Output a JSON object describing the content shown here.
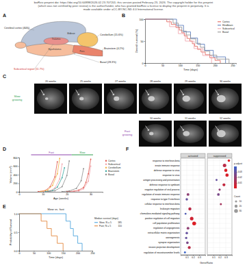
{
  "header": [
    "bioRxiv preprint doi: https://doi.org/10.64898/2026.02.23.707201; this version posted February 23, 2026. The copyright holder for this preprint",
    "(which was not certified by peer review) is the author/funder, who has granted bioRxiv a license to display the preprint in perpetuity. It is",
    "made available under aCC-BY-NC-ND 4.0 International license."
  ],
  "panel_a": {
    "label": "A",
    "regions": [
      {
        "label": "Cerebral cortex (40%)",
        "color": "#b9c5d8"
      },
      {
        "label": "Cerebellum (15.6%)",
        "color": "#f4c46b"
      },
      {
        "label": "Brainstem (4.2%)",
        "color": "#e9836b"
      },
      {
        "label": "Basal (28.3%)",
        "color": "#f6bd9c"
      },
      {
        "label": "Subcortical region (11.7%)",
        "color": "#e8908c"
      }
    ],
    "structures": [
      "Thalamus",
      "Midbrain",
      "Hypothalamus",
      "Pons"
    ]
  },
  "panel_c": {
    "label": "C",
    "slow": {
      "label": "Slow growing",
      "color": "#2e9e4f",
      "timepoints": [
        "20 weeks",
        "25 weeks",
        "27 weeks",
        "28 weeks",
        "29 weeks",
        "30 weeks"
      ]
    },
    "fast": {
      "label": "Fast growing",
      "color": "#8e44ad",
      "timepoints": [
        "10 weeks",
        "11 weeks",
        "12 weeks"
      ]
    }
  },
  "chart_data": [
    {
      "panel": "B",
      "type": "line",
      "line_style": "step",
      "xlabel": "Time (days)",
      "ylabel": "Overall survival (%)",
      "xlim": [
        0,
        260
      ],
      "xticks": [
        0,
        50,
        100,
        150,
        200,
        250
      ],
      "ylim": [
        0,
        100
      ],
      "yticks": [
        0,
        50,
        100
      ],
      "legend": "top-right",
      "series": [
        {
          "name": "Cortex",
          "color": "#e05a50",
          "x": [
            0,
            62,
            75,
            88,
            98,
            105,
            112,
            120,
            128,
            135,
            142,
            150,
            160,
            172,
            185,
            200,
            215
          ],
          "values": [
            100,
            94,
            88,
            81,
            75,
            69,
            62,
            56,
            50,
            44,
            38,
            31,
            25,
            19,
            12,
            6,
            0
          ]
        },
        {
          "name": "Hindbrain",
          "color": "#4a6fb5",
          "x": [
            0,
            90,
            110,
            130,
            150,
            170,
            195,
            230
          ],
          "values": [
            100,
            86,
            71,
            57,
            43,
            29,
            14,
            0
          ]
        },
        {
          "name": "Subcortical",
          "color": "#f0a0a8",
          "x": [
            0,
            70,
            95,
            115,
            140,
            165,
            190
          ],
          "values": [
            100,
            83,
            67,
            50,
            33,
            17,
            0
          ]
        },
        {
          "name": "Basal",
          "color": "#8c8c8c",
          "x": [
            0,
            80,
            95,
            105,
            118,
            130,
            145,
            158,
            170,
            185,
            205,
            240
          ],
          "values": [
            100,
            91,
            82,
            73,
            64,
            55,
            45,
            36,
            27,
            18,
            9,
            0
          ]
        }
      ]
    },
    {
      "panel": "D",
      "type": "line",
      "marker": "circle",
      "xlabel": "Age (weeks)",
      "ylabel": "Volume (mm³)",
      "xlim": [
        0,
        35
      ],
      "xticks": [
        0,
        10,
        20,
        30
      ],
      "ylim": [
        0,
        800
      ],
      "yticks": [
        0,
        200,
        400,
        600,
        800
      ],
      "legend": "right",
      "phases": [
        {
          "label": "Fast",
          "range": [
            5,
            22
          ],
          "color": "#8e44ad"
        },
        {
          "label": "Slow",
          "range": [
            22,
            31
          ],
          "color": "#2e9e4f"
        }
      ],
      "series": [
        {
          "name": "Cortex",
          "color": "#e05a50",
          "x": [
            8,
            11,
            13,
            15,
            16
          ],
          "values": [
            5,
            30,
            120,
            350,
            700
          ]
        },
        {
          "name": "Subcortical",
          "color": "#f0a0a8",
          "x": [
            10,
            13,
            15,
            17,
            18
          ],
          "values": [
            5,
            25,
            90,
            300,
            650
          ]
        },
        {
          "name": "Cerebellum",
          "color": "#f2b344",
          "x": [
            9,
            12,
            14,
            16,
            17
          ],
          "values": [
            5,
            40,
            150,
            420,
            780
          ]
        },
        {
          "name": "Brainstem",
          "color": "#3aa6a0",
          "x": [
            11,
            14,
            16,
            18,
            19
          ],
          "values": [
            5,
            30,
            110,
            330,
            560
          ]
        },
        {
          "name": "Basal",
          "color": "#8c8c8c",
          "x": [
            12,
            15,
            18,
            20,
            21
          ],
          "values": [
            5,
            25,
            120,
            380,
            720
          ]
        },
        {
          "name": "Cortex",
          "color": "#e05a50",
          "x": [
            20,
            23,
            25,
            27,
            28,
            29,
            30
          ],
          "values": [
            5,
            15,
            40,
            100,
            220,
            420,
            760
          ]
        },
        {
          "name": "Subcortical",
          "color": "#f0a0a8",
          "x": [
            22,
            25,
            27,
            29,
            30
          ],
          "values": [
            5,
            20,
            70,
            250,
            600
          ]
        },
        {
          "name": "Basal",
          "color": "#8c8c8c",
          "x": [
            18,
            21,
            24,
            26,
            27
          ],
          "values": [
            5,
            20,
            80,
            260,
            540
          ]
        }
      ]
    },
    {
      "panel": "E",
      "type": "line",
      "line_style": "step",
      "title": "Slow vs. fast",
      "xlabel": "Time (days)",
      "ylabel": "Probability of Survival",
      "xlim": [
        0,
        250
      ],
      "xticks": [
        0,
        50,
        100,
        150,
        200,
        250
      ],
      "ylim": [
        0,
        1
      ],
      "yticks": [
        {
          "value": 0,
          "label": "0.0"
        },
        {
          "value": 0.5,
          "label": "0.5"
        },
        {
          "value": 1,
          "label": "1.0"
        }
      ],
      "legend": "right",
      "legend_title": "Median survival (days)",
      "series": [
        {
          "name": "Slow; N = 5",
          "color": "#3a9ad9",
          "median": 185,
          "x": [
            0,
            160,
            175,
            185,
            200,
            215
          ],
          "values": [
            1,
            0.8,
            0.6,
            0.4,
            0.2,
            0
          ]
        },
        {
          "name": "Fast; N = 5",
          "color": "#e07b2a",
          "median": 110,
          "x": [
            0,
            75,
            95,
            110,
            130,
            150
          ],
          "values": [
            1,
            0.8,
            0.6,
            0.4,
            0.2,
            0
          ]
        }
      ]
    },
    {
      "panel": "F",
      "type": "dot",
      "orientation": "horizontal",
      "grid": true,
      "xlabel": "GeneRatio",
      "xlim": [
        0,
        0.4
      ],
      "xticks": [
        0.1,
        0.2,
        0.3
      ],
      "categories": [
        "response to interferon-beta",
        "innate immune response",
        "defense response to virus",
        "response to virus",
        "antigen processing and presentation",
        "defense response to symbiont",
        "negative regulation of viral process",
        "regulation of innate immune response",
        "response to type II interferon",
        "cellular response to interferon-beta",
        "leukocyte migration",
        "chemokine-mediated signaling pathway",
        "positive regulation of cell migration",
        "cell population proliferation",
        "regulation of angiogenesis",
        "extracellular matrix organization",
        "axonogenesis",
        "synapse organization",
        "neuron projection development",
        "regulation of neurotransmitter levels"
      ],
      "series": [
        {
          "name": "activated",
          "values": [
            null,
            null,
            null,
            null,
            null,
            null,
            null,
            0.12,
            0.1,
            null,
            0.15,
            0.08,
            0.18,
            0.22,
            0.12,
            0.1,
            0.09,
            0.11,
            0.14,
            0.07
          ],
          "p_adjust": [
            null,
            null,
            null,
            null,
            null,
            null,
            null,
            0.02,
            0.03,
            null,
            0.01,
            0.035,
            0.005,
            0.002,
            0.02,
            0.03,
            0.03,
            0.025,
            0.01,
            0.04
          ],
          "count": [
            null,
            null,
            null,
            null,
            null,
            null,
            null,
            15,
            12,
            null,
            20,
            8,
            25,
            30,
            14,
            12,
            10,
            13,
            18,
            8
          ]
        },
        {
          "name": "suppressed",
          "values": [
            0.35,
            0.28,
            0.3,
            0.32,
            0.15,
            0.27,
            0.2,
            0.18,
            null,
            0.22,
            null,
            null,
            null,
            null,
            null,
            null,
            null,
            null,
            null,
            null
          ],
          "p_adjust": [
            0.001,
            0.01,
            0.002,
            0.003,
            0.03,
            0.008,
            0.02,
            0.025,
            null,
            0.015,
            null,
            null,
            null,
            null,
            null,
            null,
            null,
            null,
            null,
            null
          ],
          "count": [
            12,
            25,
            20,
            22,
            8,
            18,
            10,
            14,
            null,
            9,
            null,
            null,
            null,
            null,
            null,
            null,
            null,
            null,
            null,
            null
          ]
        }
      ],
      "color_label": "p.adjust",
      "color_lim": [
        0,
        0.04
      ],
      "color_ticks": [
        0.01,
        0.02,
        0.03
      ],
      "size_label": "Count",
      "size_lim": [
        0,
        40
      ],
      "size_ticks": [
        10,
        20,
        30
      ]
    }
  ]
}
